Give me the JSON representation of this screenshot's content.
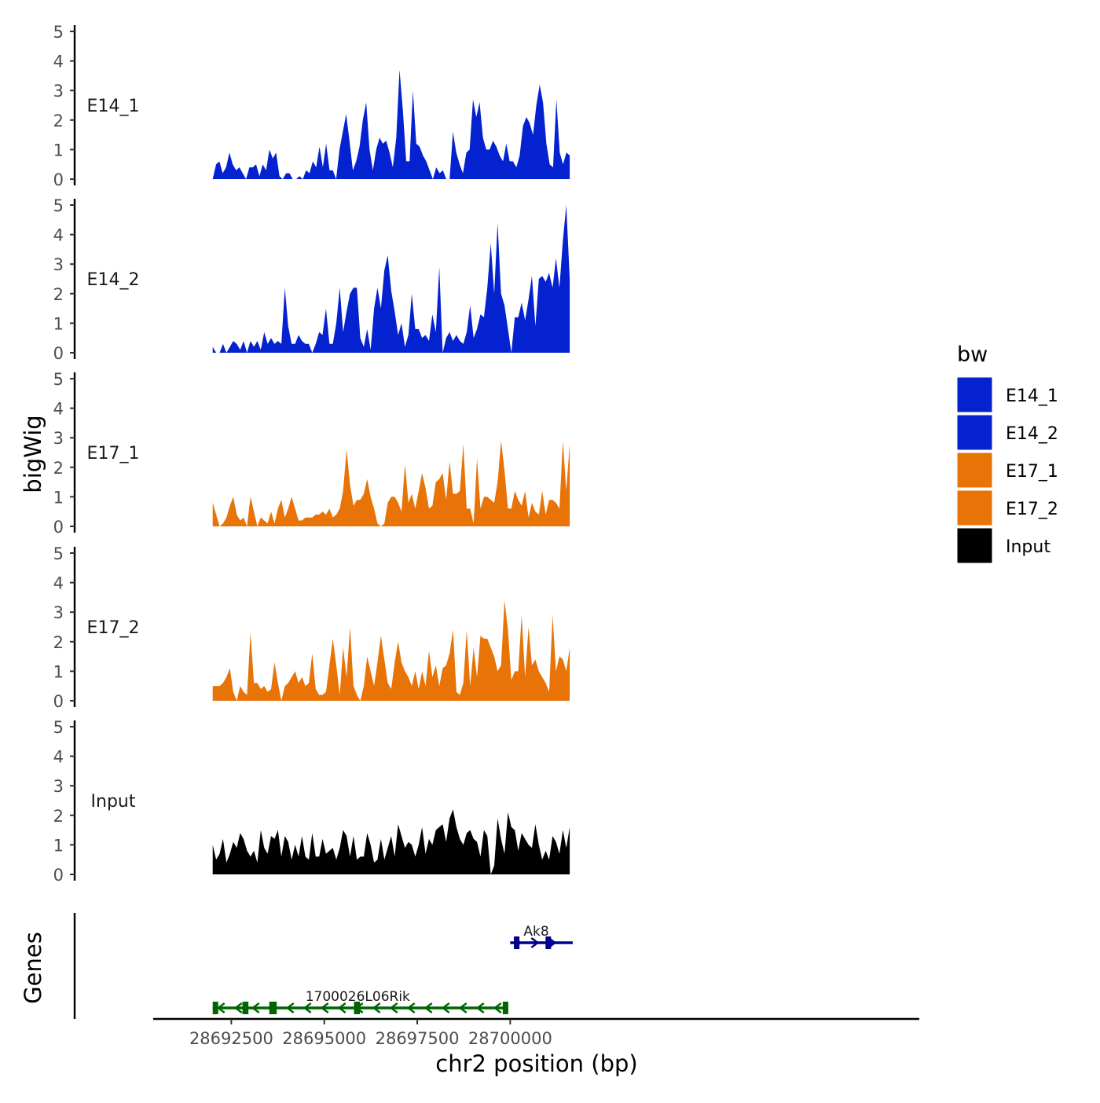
{
  "chart_data": {
    "type": "area",
    "ylabel": "bigWig",
    "xlabel": "chr2 position (bp)",
    "ylim": [
      0,
      5
    ],
    "yticks": [
      0,
      1,
      2,
      3,
      4,
      5
    ],
    "xlim": [
      28690400,
      28711000
    ],
    "xticks": [
      28692500,
      28695000,
      28697500,
      28700000
    ],
    "xtick_labels": [
      "28692500",
      "28695000",
      "28697500",
      "28700000"
    ],
    "data_range": [
      28692000,
      28701600
    ],
    "legend": {
      "title": "bw",
      "placement": "right",
      "entries": [
        {
          "label": "E14_1",
          "color": "#0422CF"
        },
        {
          "label": "E14_2",
          "color": "#0422CF"
        },
        {
          "label": "E17_1",
          "color": "#E87306"
        },
        {
          "label": "E17_2",
          "color": "#E87306"
        },
        {
          "label": "Input",
          "color": "#000000"
        }
      ]
    },
    "series": [
      {
        "name": "E14_1",
        "color": "#0422CF",
        "values": [
          0,
          0.5,
          0.6,
          0.2,
          0.4,
          0.9,
          0.5,
          0.3,
          0.4,
          0.2,
          0,
          0.4,
          0.4,
          0.5,
          0.1,
          0.5,
          0.3,
          1.0,
          0.7,
          0.9,
          0.1,
          0,
          0.2,
          0.2,
          0,
          0,
          0.1,
          0,
          0.3,
          0.2,
          0.6,
          0.4,
          1.1,
          0.4,
          1.2,
          0.3,
          0.3,
          0,
          1.0,
          1.6,
          2.2,
          1.3,
          0.3,
          0.6,
          1.1,
          2.0,
          2.6,
          1.0,
          0.3,
          1.0,
          1.4,
          1.2,
          1.3,
          0.9,
          0.4,
          1.4,
          3.7,
          2.3,
          0.6,
          0.6,
          3.0,
          1.2,
          1.1,
          0.8,
          0.6,
          0.3,
          0,
          0.4,
          0.2,
          0.3,
          0,
          0,
          1.6,
          0.9,
          0.5,
          0.2,
          0.9,
          1.0,
          2.7,
          2.1,
          2.6,
          1.4,
          1.0,
          1.0,
          1.3,
          1.1,
          0.8,
          0.6,
          1.2,
          0.6,
          0.6,
          0.4,
          0.8,
          1.8,
          2.1,
          1.9,
          1.5,
          2.5,
          3.2,
          2.6,
          1.2,
          0.5,
          0.4,
          2.7,
          0.9,
          0.5,
          0.9,
          0.8
        ]
      },
      {
        "name": "E14_2",
        "color": "#0422CF",
        "values": [
          0.2,
          0,
          0,
          0.3,
          0,
          0.2,
          0.4,
          0.3,
          0.1,
          0.4,
          0,
          0.4,
          0.2,
          0.4,
          0.1,
          0.7,
          0.3,
          0.5,
          0.3,
          0.4,
          0.3,
          2.2,
          0.9,
          0.3,
          0.3,
          0.6,
          0.4,
          0.3,
          0.3,
          0,
          0.3,
          0.7,
          0.6,
          1.5,
          0.3,
          0.3,
          1.0,
          2.2,
          0.7,
          1.4,
          2.0,
          2.2,
          2.2,
          0.5,
          0.2,
          0.8,
          0.1,
          1.5,
          2.2,
          1.5,
          2.8,
          3.3,
          2.1,
          1.4,
          0.6,
          1.0,
          0.2,
          0.6,
          2.0,
          0.8,
          0.8,
          0.5,
          0.6,
          0.4,
          1.3,
          0.7,
          2.9,
          0,
          0.5,
          0.7,
          0.4,
          0.6,
          0.4,
          0.3,
          0.7,
          1.6,
          0.5,
          0.8,
          1.3,
          1.2,
          2.2,
          3.7,
          2.0,
          4.4,
          2.0,
          1.6,
          0.8,
          0,
          1.2,
          1.2,
          1.7,
          1.1,
          1.8,
          2.6,
          0.9,
          2.5,
          2.6,
          2.4,
          2.7,
          2.2,
          3.2,
          2.2,
          3.8,
          5.0,
          2.5
        ]
      },
      {
        "name": "E17_1",
        "color": "#E87306",
        "values": [
          0.8,
          0.4,
          0,
          0.1,
          0.3,
          0.7,
          1.0,
          0.4,
          0.2,
          0.3,
          0,
          1.0,
          0.5,
          0,
          0.3,
          0.2,
          0.1,
          0.5,
          0.1,
          0.6,
          0.9,
          0.3,
          0.6,
          1.0,
          0.6,
          0.2,
          0.2,
          0.3,
          0.3,
          0.3,
          0.4,
          0.4,
          0.5,
          0.4,
          0.6,
          0.3,
          0.4,
          0.6,
          1.2,
          2.6,
          1.4,
          0.7,
          0.9,
          0.9,
          1.1,
          1.6,
          1.0,
          0.6,
          0.1,
          0,
          0.1,
          0.8,
          1.0,
          1.0,
          0.8,
          0.5,
          2.1,
          0.8,
          1.1,
          0.6,
          1.2,
          1.8,
          1.3,
          0.6,
          0.7,
          1.5,
          1.6,
          1.8,
          0.9,
          2.2,
          1.1,
          1.1,
          1.2,
          2.8,
          0.6,
          0.6,
          0.1,
          2.3,
          0.6,
          1.0,
          1.0,
          0.9,
          0.8,
          1.5,
          2.9,
          1.9,
          0.6,
          0.6,
          1.2,
          0.9,
          0.7,
          1.2,
          0.3,
          0.8,
          0.5,
          0.4,
          1.2,
          0.4,
          0.9,
          0.9,
          0.8,
          0.6,
          2.9,
          1.2,
          2.8
        ]
      },
      {
        "name": "E17_2",
        "color": "#E87306",
        "values": [
          0.5,
          0.5,
          0.5,
          0.6,
          0.8,
          1.1,
          0.3,
          0,
          0.5,
          0.3,
          0.2,
          2.3,
          0.6,
          0.6,
          0.4,
          0.5,
          0.3,
          0.4,
          1.3,
          0.6,
          0,
          0.5,
          0.6,
          0.8,
          1.0,
          0.6,
          0.8,
          0.5,
          0.6,
          1.6,
          0.4,
          0.2,
          0.2,
          0.3,
          1.2,
          2.1,
          1.2,
          0.2,
          1.8,
          0.8,
          2.5,
          0.5,
          0.2,
          0,
          0.5,
          1.5,
          1.0,
          0.5,
          1.3,
          2.2,
          1.4,
          0.6,
          0.4,
          1.3,
          2.0,
          1.3,
          1.0,
          0.8,
          0.5,
          1.0,
          0.4,
          1.0,
          0.5,
          1.7,
          0.8,
          1.2,
          0.5,
          1.1,
          1.2,
          1.6,
          2.4,
          0.3,
          0.2,
          0.6,
          2.4,
          0.5,
          1.8,
          0.8,
          2.2,
          2.1,
          2.1,
          1.8,
          1.5,
          1.0,
          1.2,
          3.4,
          2.4,
          0.7,
          1.0,
          1.0,
          2.9,
          0.8,
          2.5,
          1.2,
          1.4,
          1.0,
          0.8,
          0.6,
          0.3,
          2.9,
          1.0,
          1.5,
          1.4,
          1.0,
          1.8
        ]
      },
      {
        "name": "Input",
        "color": "#000000",
        "values": [
          1.0,
          0.5,
          0.7,
          1.2,
          0.4,
          0.7,
          1.1,
          0.9,
          1.4,
          1.2,
          0.8,
          0.6,
          0.8,
          0.4,
          1.5,
          0.9,
          0.7,
          1.3,
          1.2,
          1.5,
          0.6,
          1.3,
          1.1,
          0.5,
          1.0,
          0.6,
          1.3,
          0.6,
          0.5,
          1.4,
          0.6,
          0.6,
          1.2,
          0.7,
          0.8,
          0.9,
          0.5,
          0.9,
          1.5,
          1.3,
          0.6,
          1.3,
          0.5,
          0.6,
          0.6,
          1.4,
          1.0,
          0.4,
          0.5,
          1.2,
          0.5,
          0.9,
          1.3,
          0.6,
          1.7,
          1.3,
          0.9,
          1.1,
          1.0,
          0.6,
          1.0,
          1.6,
          0.7,
          1.2,
          1.0,
          1.5,
          1.6,
          1.7,
          1.1,
          1.9,
          2.2,
          1.6,
          1.2,
          1.0,
          1.4,
          1.5,
          1.2,
          1.1,
          0.6,
          1.5,
          1.3,
          0,
          0.3,
          1.9,
          1.2,
          0.7,
          2.1,
          1.6,
          1.5,
          0.8,
          1.4,
          1.2,
          1.0,
          0.9,
          1.7,
          1.0,
          0.5,
          0.8,
          0.5,
          1.3,
          1.1,
          0.7,
          1.5,
          0.9,
          1.6
        ]
      }
    ],
    "genes_track": {
      "label": "Genes",
      "genes": [
        {
          "name": "Ak8",
          "color": "#00008B",
          "strand": "+",
          "start": 28700000,
          "end": 28701680,
          "exons": [
            [
              28700100,
              28700200
            ],
            [
              28700950,
              28701050
            ]
          ],
          "label_pos": 28700700
        },
        {
          "name": "1700026L06Rik",
          "color": "#006400",
          "strand": "-",
          "start": 28692000,
          "end": 28699900,
          "exons": [
            [
              28692000,
              28692080
            ],
            [
              28692800,
              28692960
            ],
            [
              28693520,
              28693720
            ],
            [
              28695800,
              28695960
            ],
            [
              28699800,
              28699920
            ]
          ],
          "label_pos": 28695900
        }
      ]
    }
  }
}
